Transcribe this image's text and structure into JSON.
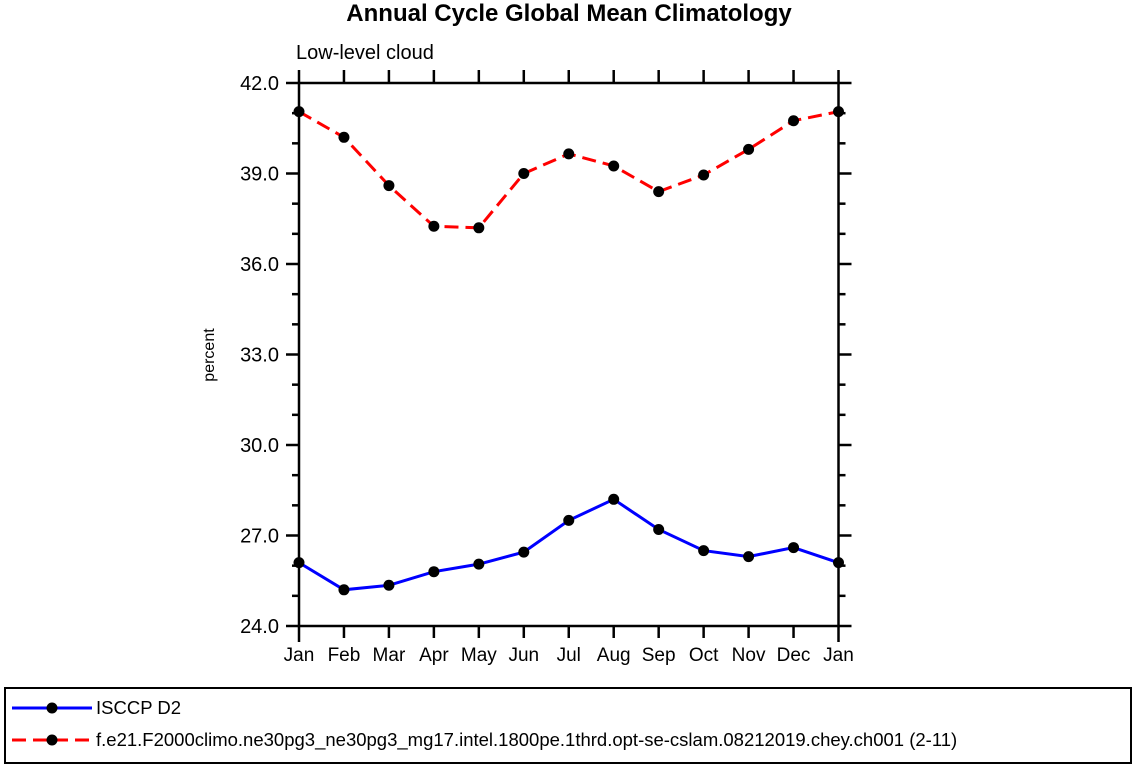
{
  "chart_data": {
    "type": "line",
    "title": "Annual Cycle Global Mean Climatology",
    "subtitle": "Low-level cloud",
    "ylabel": "percent",
    "categories": [
      "Jan",
      "Feb",
      "Mar",
      "Apr",
      "May",
      "Jun",
      "Jul",
      "Aug",
      "Sep",
      "Oct",
      "Nov",
      "Dec",
      "Jan"
    ],
    "ylim": [
      24.0,
      42.0
    ],
    "yticks": {
      "major_values": [
        24,
        27,
        30,
        33,
        36,
        39,
        42
      ],
      "major_labels": [
        "24.0",
        "27.0",
        "30.0",
        "33.0",
        "36.0",
        "39.0",
        "42.0"
      ],
      "minor_step": 1.0
    },
    "grid": false,
    "axis_color": "#000000",
    "marker_color": "#000000",
    "legend_position": "bottom-box",
    "series": [
      {
        "name": "ISCCP D2",
        "color": "#0000ff",
        "line_style": "solid",
        "marker": "circle",
        "values": [
          26.1,
          25.2,
          25.35,
          25.8,
          26.05,
          26.45,
          27.5,
          28.2,
          27.2,
          26.5,
          26.3,
          26.6,
          26.1
        ]
      },
      {
        "name": "f.e21.F2000climo.ne30pg3_ne30pg3_mg17.intel.1800pe.1thrd.opt-se-cslam.08212019.chey.ch001 (2-11)",
        "color": "#ff0000",
        "line_style": "dashed",
        "marker": "circle",
        "values": [
          41.05,
          40.2,
          38.6,
          37.25,
          37.2,
          39.0,
          39.65,
          39.25,
          38.4,
          38.95,
          39.8,
          40.75,
          41.05
        ]
      }
    ]
  }
}
